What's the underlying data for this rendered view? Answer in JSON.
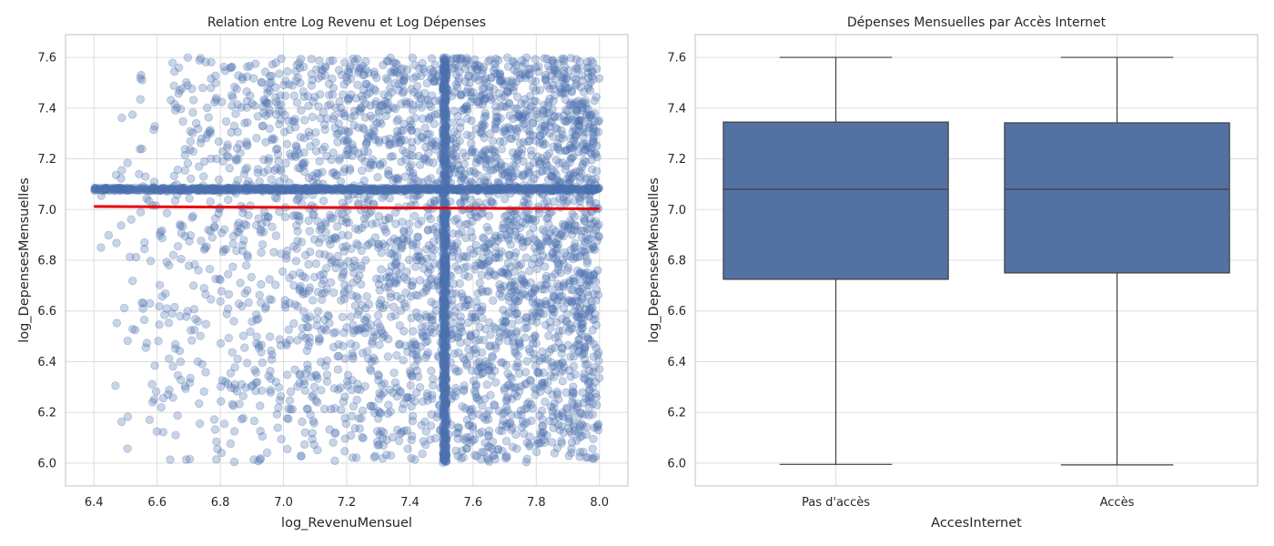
{
  "chart_data": [
    {
      "type": "scatter",
      "title": "Relation entre Log Revenu et Log Dépenses",
      "xlabel": "log_RevenuMensuel",
      "ylabel": "log_DepensesMensuelles",
      "xlim": [
        6.31,
        8.09
      ],
      "ylim": [
        5.91,
        7.69
      ],
      "xticks": [
        "6.4",
        "6.6",
        "6.8",
        "7.0",
        "7.2",
        "7.4",
        "7.6",
        "7.8",
        "8.0"
      ],
      "yticks": [
        "6.0",
        "6.2",
        "6.4",
        "6.6",
        "6.8",
        "7.0",
        "7.2",
        "7.4",
        "7.6"
      ],
      "grid": true,
      "point_color": "#4c72b0",
      "point_alpha": 0.3,
      "point_ranges": {
        "x": [
          6.4,
          8.0
        ],
        "y": [
          6.0,
          7.6
        ],
        "density_increasing_with_x": true,
        "concentration_lines": {
          "x": 7.51,
          "y": 7.08
        }
      },
      "regression_line": {
        "color": "#e8000b",
        "points": [
          {
            "x": 6.4,
            "y": 7.012
          },
          {
            "x": 8.0,
            "y": 7.003
          }
        ]
      }
    },
    {
      "type": "box",
      "title": "Dépenses Mensuelles par Accès Internet",
      "xlabel": "AccesInternet",
      "ylabel": "log_DepensesMensuelles",
      "categories": [
        "Pas d'accès",
        "Accès"
      ],
      "ylim": [
        5.91,
        7.69
      ],
      "yticks": [
        "6.0",
        "6.2",
        "6.4",
        "6.6",
        "6.8",
        "7.0",
        "7.2",
        "7.4",
        "7.6"
      ],
      "grid": true,
      "box_color": "#5471a3",
      "boxes": [
        {
          "category": "Pas d'accès",
          "min": 5.995,
          "q1": 6.725,
          "median": 7.08,
          "q3": 7.345,
          "max": 7.6
        },
        {
          "category": "Accès",
          "min": 5.993,
          "q1": 6.75,
          "median": 7.08,
          "q3": 7.342,
          "max": 7.6
        }
      ]
    }
  ]
}
